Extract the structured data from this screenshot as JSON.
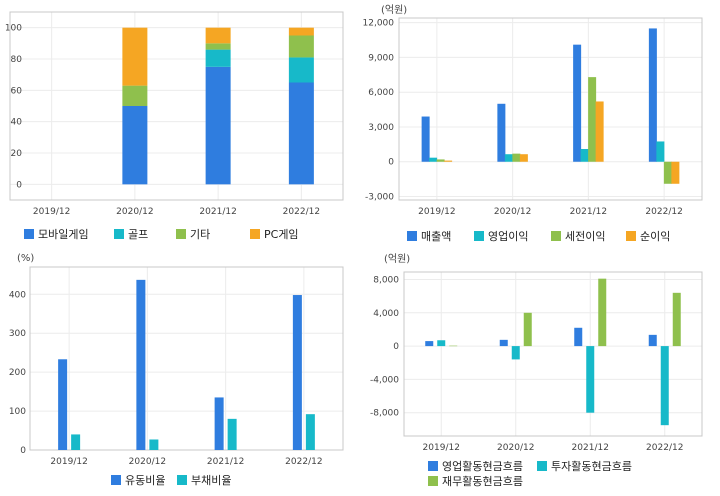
{
  "chart_data": [
    {
      "type": "bar",
      "stacked": true,
      "categories": [
        "2019/12",
        "2020/12",
        "2021/12",
        "2022/12"
      ],
      "ylim": [
        -10,
        110
      ],
      "yticks": [
        0,
        20,
        40,
        60,
        80,
        100
      ],
      "unit": "",
      "grid": true,
      "legend_position": "bottom",
      "series": [
        {
          "name": "모바일게임",
          "color": "#2f7ddf",
          "values": [
            0,
            50,
            75,
            65
          ]
        },
        {
          "name": "골프",
          "color": "#17b9c9",
          "values": [
            0,
            0,
            11,
            16
          ]
        },
        {
          "name": "기타",
          "color": "#8fc04d",
          "values": [
            0,
            13,
            4,
            14
          ]
        },
        {
          "name": "PC게임",
          "color": "#f5a623",
          "values": [
            0,
            37,
            10,
            5
          ]
        }
      ]
    },
    {
      "type": "bar",
      "categories": [
        "2019/12",
        "2020/12",
        "2021/12",
        "2022/12"
      ],
      "ylim": [
        -3300,
        12400
      ],
      "yticks": [
        -3000,
        0,
        3000,
        6000,
        9000,
        12000
      ],
      "ytick_labels": [
        "-3,000",
        "0",
        "3,000",
        "6,000",
        "9,000",
        "12,000"
      ],
      "unit": "(억원)",
      "grid": true,
      "legend_position": "bottom",
      "series": [
        {
          "name": "매출액",
          "color": "#2f7ddf",
          "values": [
            3900,
            5000,
            10100,
            11500
          ]
        },
        {
          "name": "영업이익",
          "color": "#17b9c9",
          "values": [
            350,
            650,
            1100,
            1750
          ]
        },
        {
          "name": "세전이익",
          "color": "#8fc04d",
          "values": [
            200,
            700,
            7300,
            -1900
          ]
        },
        {
          "name": "순이익",
          "color": "#f5a623",
          "values": [
            100,
            650,
            5200,
            -1900
          ]
        }
      ]
    },
    {
      "type": "bar",
      "categories": [
        "2019/12",
        "2020/12",
        "2021/12",
        "2022/12"
      ],
      "ylim": [
        0,
        470
      ],
      "yticks": [
        0,
        100,
        200,
        300,
        400
      ],
      "unit": "(%)",
      "grid": true,
      "legend_position": "bottom",
      "series": [
        {
          "name": "유동비율",
          "color": "#2f7ddf",
          "values": [
            233,
            437,
            135,
            398
          ]
        },
        {
          "name": "부채비율",
          "color": "#17b9c9",
          "values": [
            40,
            27,
            80,
            92
          ]
        }
      ]
    },
    {
      "type": "bar",
      "categories": [
        "2019/12",
        "2020/12",
        "2021/12",
        "2022/12"
      ],
      "ylim": [
        -10800,
        8900
      ],
      "yticks": [
        -8000,
        -4000,
        0,
        4000,
        8000
      ],
      "ytick_labels": [
        "-8,000",
        "-4,000",
        "0",
        "4,000",
        "8,000"
      ],
      "unit": "(억원)",
      "grid": true,
      "legend_position": "bottom",
      "series": [
        {
          "name": "영업활동현금흐름",
          "color": "#2f7ddf",
          "values": [
            600,
            750,
            2200,
            1350
          ]
        },
        {
          "name": "투자활동현금흐름",
          "color": "#17b9c9",
          "values": [
            700,
            -1600,
            -8000,
            -9500
          ]
        },
        {
          "name": "재무활동현금흐름",
          "color": "#8fc04d",
          "values": [
            50,
            4000,
            8100,
            6400
          ]
        }
      ]
    }
  ]
}
